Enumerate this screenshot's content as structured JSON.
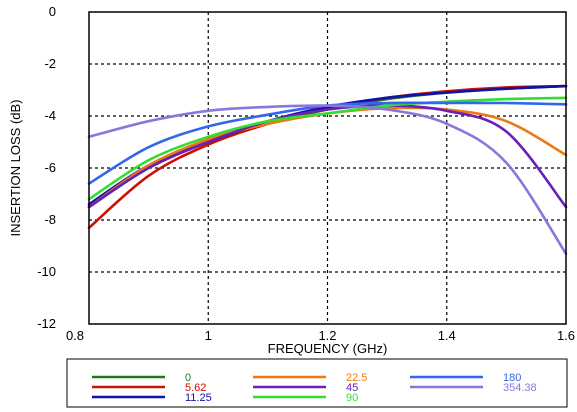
{
  "chart_data": {
    "type": "line",
    "xlabel": "FREQUENCY (GHz)",
    "ylabel": "INSERTION LOSS  (dB)",
    "xlim": [
      0.8,
      1.6
    ],
    "ylim": [
      -12,
      0
    ],
    "x_ticks": [
      0.8,
      1,
      1.2,
      1.4,
      1.6
    ],
    "x_tick_labels": [
      "0.8",
      "1",
      "1.2",
      "1.4",
      "1.6"
    ],
    "y_ticks": [
      0,
      -2,
      -4,
      -6,
      -8,
      -10,
      -12
    ],
    "y_tick_labels": [
      "0",
      "-2",
      "-4",
      "-6",
      "-8",
      "-10",
      "-12"
    ],
    "grid": true,
    "legend_position": "bottom",
    "x": [
      0.8,
      0.9,
      1.0,
      1.1,
      1.2,
      1.3,
      1.4,
      1.5,
      1.6
    ],
    "series": [
      {
        "name": "0",
        "color": "#1f7a1f",
        "values": [
          -7.5,
          -6.0,
          -5.0,
          -4.3,
          -3.75,
          -3.35,
          -3.1,
          -2.95,
          -2.85
        ]
      },
      {
        "name": "5.62",
        "color": "#cc1100",
        "values": [
          -8.3,
          -6.3,
          -5.1,
          -4.3,
          -3.7,
          -3.3,
          -3.05,
          -2.9,
          -2.85
        ]
      },
      {
        "name": "11.25",
        "color": "#1111aa",
        "values": [
          -7.4,
          -5.9,
          -5.0,
          -4.2,
          -3.65,
          -3.3,
          -3.1,
          -2.95,
          -2.85
        ]
      },
      {
        "name": "22.5",
        "color": "#ee7711",
        "values": [
          -7.5,
          -5.9,
          -4.9,
          -4.3,
          -3.9,
          -3.7,
          -3.75,
          -4.2,
          -5.5
        ]
      },
      {
        "name": "45",
        "color": "#6a1fb8",
        "values": [
          -7.5,
          -6.0,
          -5.0,
          -4.2,
          -3.75,
          -3.6,
          -3.8,
          -4.6,
          -7.5
        ]
      },
      {
        "name": "90",
        "color": "#33dd33",
        "values": [
          -7.2,
          -5.7,
          -4.8,
          -4.2,
          -3.9,
          -3.6,
          -3.45,
          -3.35,
          -3.3
        ]
      },
      {
        "name": "180",
        "color": "#3366ee",
        "values": [
          -6.6,
          -5.2,
          -4.4,
          -3.95,
          -3.6,
          -3.5,
          -3.5,
          -3.5,
          -3.55
        ]
      },
      {
        "name": "354.38",
        "color": "#8877dd",
        "values": [
          -4.8,
          -4.2,
          -3.8,
          -3.65,
          -3.6,
          -3.75,
          -4.3,
          -5.8,
          -9.3
        ]
      }
    ]
  }
}
